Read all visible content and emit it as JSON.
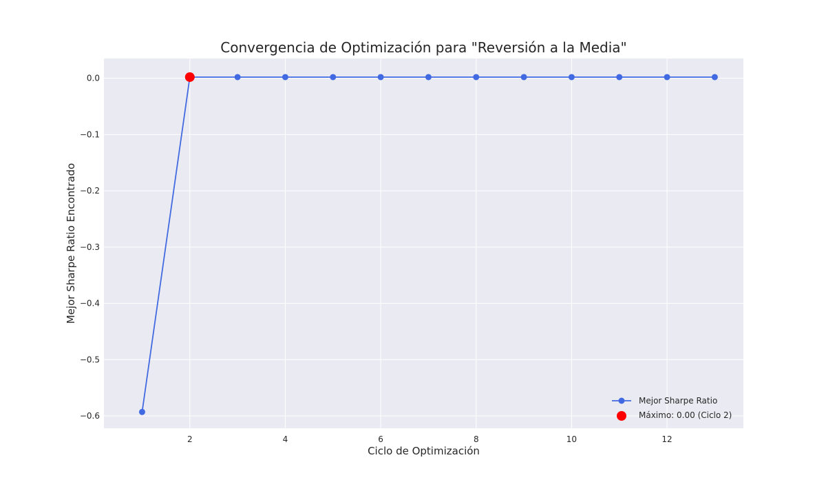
{
  "chart_data": {
    "type": "line",
    "title": "Convergencia de Optimización para \"Reversión a la Media\"",
    "xlabel": "Ciclo de Optimización",
    "ylabel": "Mejor Sharpe Ratio Encontrado",
    "x": [
      1,
      2,
      3,
      4,
      5,
      6,
      7,
      8,
      9,
      10,
      11,
      12,
      13
    ],
    "xlim": [
      0.2,
      13.6
    ],
    "ylim": [
      -0.622,
      0.035
    ],
    "x_ticks": [
      2,
      4,
      6,
      8,
      10,
      12
    ],
    "x_tick_labels": [
      "2",
      "4",
      "6",
      "8",
      "10",
      "12"
    ],
    "y_ticks": [
      0.0,
      -0.1,
      -0.2,
      -0.3,
      -0.4,
      -0.5,
      -0.6
    ],
    "y_tick_labels": [
      "0.0",
      "−0.1",
      "−0.2",
      "−0.3",
      "−0.4",
      "−0.5",
      "−0.6"
    ],
    "grid": true,
    "legend_position": "lower-right",
    "series": [
      {
        "name": "Mejor Sharpe Ratio",
        "color": "#4169e1",
        "marker": "circle",
        "values": [
          -0.593,
          0.002,
          0.002,
          0.002,
          0.002,
          0.002,
          0.002,
          0.002,
          0.002,
          0.002,
          0.002,
          0.002,
          0.002
        ]
      }
    ],
    "highlight": {
      "label": "Máximo: 0.00 (Ciclo 2)",
      "color": "#ff0000",
      "x": 2,
      "y": 0.002
    },
    "colors": {
      "plot_background": "#eaeaf2",
      "grid": "#ffffff",
      "text": "#262626"
    }
  }
}
